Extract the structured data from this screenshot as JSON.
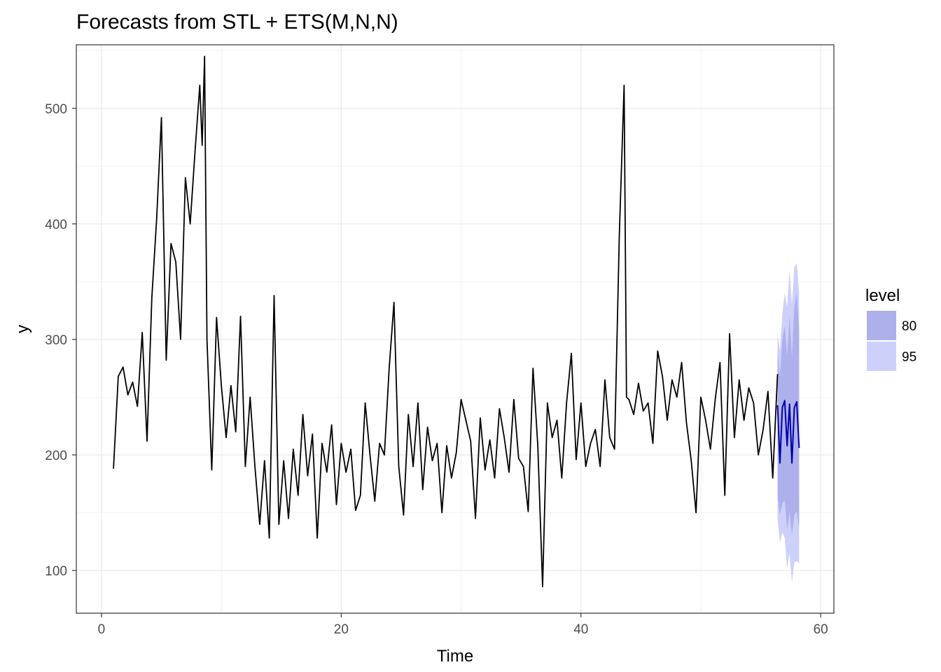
{
  "chart_data": {
    "type": "line",
    "title": "Forecasts from STL +  ETS(M,N,N)",
    "xlabel": "Time",
    "ylabel": "y",
    "xlim": [
      -2.1,
      61.1
    ],
    "ylim": [
      63,
      555
    ],
    "x_ticks": [
      0,
      20,
      40,
      60
    ],
    "y_ticks": [
      100,
      200,
      300,
      400,
      500
    ],
    "grid": true,
    "legend_position": "right",
    "legend": {
      "title": "level",
      "items": [
        {
          "label": "80",
          "color": "#aeb0ec"
        },
        {
          "label": "95",
          "color": "#cdd0fa"
        }
      ]
    },
    "colors": {
      "observed": "#000000",
      "forecast": "#0000aa",
      "band80": "#aeb0ec",
      "band95": "#cdd0fa"
    },
    "series": [
      {
        "x": [
          1.0,
          1.4,
          1.8,
          2.2,
          2.6,
          3.0,
          3.4,
          3.8,
          4.2,
          4.6,
          5.0,
          5.4,
          5.8,
          6.2,
          6.6,
          7.0,
          7.4,
          7.8,
          8.2,
          8.4,
          8.6,
          8.8,
          9.2,
          9.6,
          10.0,
          10.4,
          10.8,
          11.2,
          11.6,
          12.0,
          12.4,
          12.8,
          13.2,
          13.6,
          14.0,
          14.4,
          14.8,
          15.2,
          15.6,
          16.0,
          16.4,
          16.8,
          17.2,
          17.6,
          18.0,
          18.4,
          18.8,
          19.2,
          19.6,
          20.0,
          20.4,
          20.8,
          21.2,
          21.6,
          22.0,
          22.4,
          22.8,
          23.2,
          23.6,
          24.0,
          24.4,
          24.8,
          25.2,
          25.6,
          26.0,
          26.4,
          26.8,
          27.2,
          27.6,
          28.0,
          28.4,
          28.8,
          29.2,
          29.6,
          30.0,
          30.4,
          30.8,
          31.2,
          31.6,
          32.0,
          32.4,
          32.8,
          33.2,
          33.6,
          34.0,
          34.4,
          34.8,
          35.2,
          35.6,
          36.0,
          36.4,
          36.8,
          37.2,
          37.6,
          38.0,
          38.4,
          38.8,
          39.2,
          39.6,
          40.0,
          40.4,
          40.8,
          41.2,
          41.6,
          42.0,
          42.4,
          42.8,
          43.2,
          43.6,
          43.8,
          44.0,
          44.4,
          44.8,
          45.2,
          45.6,
          46.0,
          46.4,
          46.8,
          47.2,
          47.6,
          48.0,
          48.4,
          48.8,
          49.2,
          49.6,
          50.0,
          50.4,
          50.8,
          51.2,
          51.6,
          52.0,
          52.4,
          52.8,
          53.2,
          53.6,
          54.0,
          54.4,
          54.8,
          55.2,
          55.6,
          56.0,
          56.4
        ],
        "y": [
          188,
          268,
          276,
          252,
          263,
          242,
          306,
          212,
          336,
          404,
          492,
          282,
          383,
          367,
          300,
          440,
          400,
          462,
          520,
          468,
          545,
          300,
          187,
          319,
          260,
          215,
          260,
          220,
          320,
          190,
          250,
          190,
          140,
          195,
          128,
          338,
          140,
          195,
          145,
          205,
          165,
          235,
          182,
          218,
          128,
          210,
          185,
          226,
          157,
          210,
          185,
          205,
          152,
          165,
          245,
          200,
          160,
          210,
          200,
          275,
          332,
          190,
          148,
          235,
          190,
          245,
          170,
          224,
          195,
          210,
          150,
          208,
          180,
          202,
          248,
          230,
          212,
          145,
          232,
          187,
          213,
          180,
          240,
          215,
          185,
          248,
          197,
          190,
          151,
          275,
          208,
          86,
          245,
          215,
          230,
          180,
          245,
          288,
          196,
          245,
          190,
          210,
          222,
          190,
          265,
          215,
          205,
          390,
          520,
          250,
          248,
          235,
          262,
          238,
          245,
          210,
          290,
          268,
          230,
          265,
          250,
          280,
          228,
          195,
          150,
          250,
          230,
          205,
          248,
          280,
          165,
          305,
          215,
          265,
          230,
          258,
          245,
          200,
          222,
          255,
          180,
          270
        ]
      },
      {
        "name": "forecast",
        "x": [
          56.4,
          56.6,
          56.8,
          57.0,
          57.2,
          57.4,
          57.6,
          57.8,
          58.0,
          58.2
        ],
        "y": [
          243,
          193,
          241,
          247,
          208,
          244,
          193,
          241,
          246,
          206
        ],
        "lower80": [
          165,
          148,
          158,
          161,
          135,
          150,
          131,
          148,
          151,
          137
        ],
        "upper80": [
          290,
          268,
          300,
          312,
          286,
          320,
          285,
          328,
          340,
          310
        ],
        "lower95": [
          145,
          124,
          133,
          128,
          102,
          115,
          90,
          107,
          108,
          106
        ],
        "upper95": [
          305,
          290,
          322,
          340,
          328,
          360,
          330,
          362,
          366,
          340
        ]
      }
    ]
  }
}
